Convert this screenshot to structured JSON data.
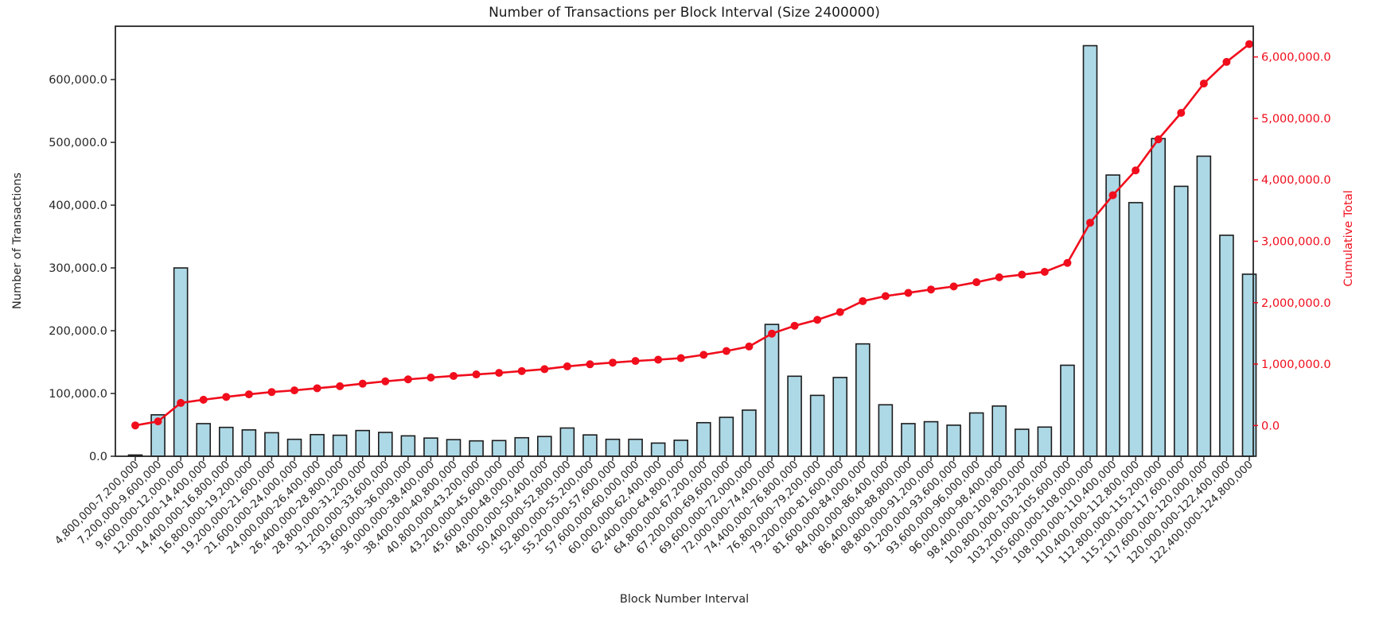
{
  "figure": {
    "title": "Number of Transactions per Block Interval (Size 2400000)",
    "xlabel": "Block Number Interval",
    "ylabel_left": "Number of Transactions",
    "ylabel_right": "Cumulative Total"
  },
  "chart_data": {
    "type": "bar",
    "title": "Number of Transactions per Block Interval (Size 2400000)",
    "xlabel": "Block Number Interval",
    "ylabel": "Number of Transactions",
    "ylabel_right": "Cumulative Total",
    "grid": false,
    "legend": "none",
    "categories": [
      "4,800,000-7,200,000",
      "7,200,000-9,600,000",
      "9,600,000-12,000,000",
      "12,000,000-14,400,000",
      "14,400,000-16,800,000",
      "16,800,000-19,200,000",
      "19,200,000-21,600,000",
      "21,600,000-24,000,000",
      "24,000,000-26,400,000",
      "26,400,000-28,800,000",
      "28,800,000-31,200,000",
      "31,200,000-33,600,000",
      "33,600,000-36,000,000",
      "36,000,000-38,400,000",
      "38,400,000-40,800,000",
      "40,800,000-43,200,000",
      "43,200,000-45,600,000",
      "45,600,000-48,000,000",
      "48,000,000-50,400,000",
      "50,400,000-52,800,000",
      "52,800,000-55,200,000",
      "55,200,000-57,600,000",
      "57,600,000-60,000,000",
      "60,000,000-62,400,000",
      "62,400,000-64,800,000",
      "64,800,000-67,200,000",
      "67,200,000-69,600,000",
      "69,600,000-72,000,000",
      "72,000,000-74,400,000",
      "74,400,000-76,800,000",
      "76,800,000-79,200,000",
      "79,200,000-81,600,000",
      "81,600,000-84,000,000",
      "84,000,000-86,400,000",
      "86,400,000-88,800,000",
      "88,800,000-91,200,000",
      "91,200,000-93,600,000",
      "93,600,000-96,000,000",
      "96,000,000-98,400,000",
      "98,400,000-100,800,000",
      "100,800,000-103,200,000",
      "103,200,000-105,600,000",
      "105,600,000-108,000,000",
      "108,000,000-110,400,000",
      "110,400,000-112,800,000",
      "112,800,000-115,200,000",
      "115,200,000-117,600,000",
      "117,600,000-120,000,000",
      "120,000,000-122,400,000",
      "122,400,000-124,800,000"
    ],
    "series": [
      {
        "name": "Number of Transactions",
        "type": "bar",
        "axis": "left",
        "values": [
          2000,
          66000,
          300000,
          52000,
          46000,
          42000,
          37500,
          27000,
          34500,
          33500,
          41000,
          38000,
          32500,
          29000,
          26500,
          24500,
          25000,
          29500,
          31500,
          45000,
          34000,
          27000,
          27000,
          21000,
          25500,
          53500,
          62000,
          73500,
          210000,
          127500,
          97000,
          125500,
          179000,
          82000,
          52000,
          55000,
          49500,
          69000,
          80000,
          43000,
          46500,
          145000,
          654000,
          448000,
          404000,
          506000,
          430000,
          478000,
          352000,
          290000
        ]
      },
      {
        "name": "Cumulative Total",
        "type": "line",
        "axis": "right",
        "values": [
          2000,
          68000,
          368000,
          420000,
          466000,
          508000,
          545500,
          572500,
          607000,
          640500,
          681500,
          719500,
          752000,
          781000,
          807500,
          832000,
          857000,
          886500,
          918000,
          963000,
          997000,
          1024000,
          1051000,
          1072000,
          1097500,
          1151000,
          1213000,
          1286500,
          1496500,
          1624000,
          1721000,
          1846500,
          2025500,
          2107500,
          2159500,
          2214500,
          2264000,
          2333000,
          2413000,
          2456000,
          2502500,
          2647500,
          3301500,
          3749500,
          4153500,
          4659500,
          5089500,
          5567500,
          5919500,
          6209500
        ]
      }
    ],
    "yticks_left": [
      0,
      100000,
      200000,
      300000,
      400000,
      500000,
      600000
    ],
    "yticks_right": [
      0,
      1000000,
      2000000,
      3000000,
      4000000,
      5000000,
      6000000
    ],
    "ylim_left": [
      0,
      685000
    ],
    "ylim_right": [
      -500000,
      6500000
    ],
    "colors": {
      "bar_fill": "#add8e6",
      "bar_edge": "#1c1c1c",
      "line": "#f00d1c",
      "axis": "#262626",
      "tick_label_left": "#262626",
      "tick_label_right": "#f00d1c"
    }
  }
}
